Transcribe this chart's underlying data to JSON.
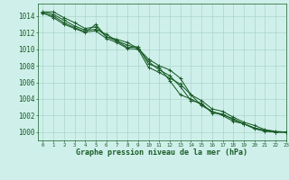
{
  "title": "Graphe pression niveau de la mer (hPa)",
  "background_color": "#cff0ea",
  "grid_color": "#aad4cc",
  "line_color": "#1a5c28",
  "xlim": [
    -0.5,
    23
  ],
  "ylim": [
    999.0,
    1015.5
  ],
  "yticks": [
    1000,
    1002,
    1004,
    1006,
    1008,
    1010,
    1012,
    1014
  ],
  "xticks": [
    0,
    1,
    2,
    3,
    4,
    5,
    6,
    7,
    8,
    9,
    10,
    11,
    12,
    13,
    14,
    15,
    16,
    17,
    18,
    19,
    20,
    21,
    22,
    23
  ],
  "series": [
    [
      1014.5,
      1014.5,
      1013.8,
      1013.2,
      1012.5,
      1012.7,
      1011.5,
      1011.2,
      1010.8,
      1010.1,
      1008.5,
      1007.5,
      1006.8,
      1005.5,
      1003.8,
      1003.5,
      1002.3,
      1002.2,
      1001.5,
      1001.0,
      1000.5,
      1000.2,
      1000.0,
      1000.0
    ],
    [
      1014.5,
      1014.2,
      1013.5,
      1012.8,
      1012.3,
      1012.4,
      1011.8,
      1011.0,
      1010.5,
      1010.1,
      1008.8,
      1008.0,
      1007.5,
      1006.5,
      1004.5,
      1003.8,
      1002.8,
      1002.5,
      1001.8,
      1001.2,
      1000.8,
      1000.3,
      1000.1,
      1000.0
    ],
    [
      1014.4,
      1013.8,
      1013.0,
      1012.5,
      1012.0,
      1013.0,
      1011.5,
      1011.0,
      1010.2,
      1010.3,
      1008.2,
      1007.8,
      1006.2,
      1004.5,
      1004.0,
      1003.3,
      1002.5,
      1002.1,
      1001.6,
      1001.0,
      1000.4,
      1000.1,
      1000.0,
      1000.0
    ],
    [
      1014.3,
      1014.0,
      1013.2,
      1012.6,
      1012.1,
      1012.2,
      1011.3,
      1010.8,
      1010.1,
      1010.0,
      1007.8,
      1007.2,
      1006.5,
      1005.8,
      1004.5,
      1003.2,
      1002.5,
      1002.0,
      1001.3,
      1001.0,
      1000.5,
      1000.2,
      1000.0,
      1000.0
    ]
  ],
  "ylabel_fontsize": 5.5,
  "xlabel_fontsize": 5.5,
  "title_fontsize": 6.0,
  "linewidth": 0.75,
  "markersize": 3.5,
  "markeredgewidth": 0.7
}
